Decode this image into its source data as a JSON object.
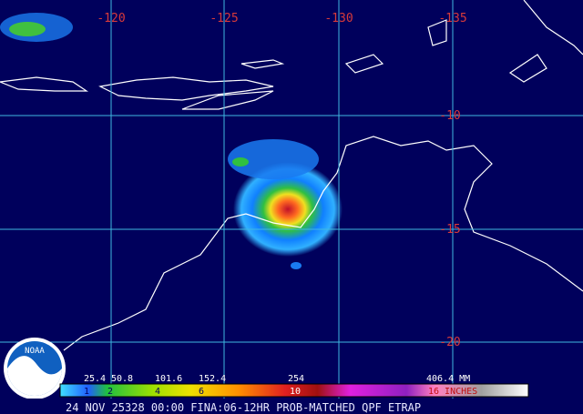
{
  "grid": {
    "longitudes": [
      "-120",
      "-125",
      "-130",
      "-135"
    ],
    "latitudes": [
      "-10",
      "-15",
      "-20"
    ]
  },
  "legend": {
    "mm_labels": [
      "25.4",
      "50.8",
      "101.6",
      "152.4",
      "254",
      "406.4 MM"
    ],
    "inch_labels": [
      "1",
      "2",
      "4",
      "6",
      "10",
      "16 INCHES"
    ]
  },
  "logo": "NOAA",
  "footer": "24 NOV 25328 00:00 FINA:06-12HR PROB-MATCHED QPF ETRAP"
}
